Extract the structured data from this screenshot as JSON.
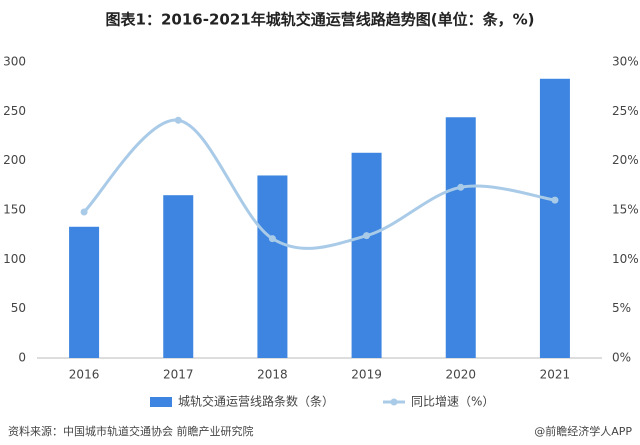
{
  "chart_data": {
    "type": "bar",
    "title": "图表1：2016-2021年城轨交通运营线路趋势图(单位：条，%)",
    "categories": [
      "2016",
      "2017",
      "2018",
      "2019",
      "2020",
      "2021"
    ],
    "series": [
      {
        "name": "城轨交通运营线路条数（条）",
        "color": "#3d85e0",
        "type": "bar",
        "values": [
          133,
          165,
          185,
          208,
          244,
          283
        ]
      },
      {
        "name": "同比增速（%）",
        "color": "#a9cbe8",
        "type": "line",
        "axis": "y2",
        "values": [
          14.8,
          24.1,
          12.1,
          12.4,
          17.3,
          16.0
        ]
      }
    ],
    "ylim": [
      0,
      300
    ],
    "yticks": [
      0,
      50,
      100,
      150,
      200,
      250,
      300
    ],
    "y2lim": [
      0,
      30
    ],
    "y2ticks": [
      {
        "value": 0,
        "label": "0%"
      },
      {
        "value": 5,
        "label": "5%"
      },
      {
        "value": 10,
        "label": "10%"
      },
      {
        "value": 15,
        "label": "15%"
      },
      {
        "value": 20,
        "label": "20%"
      },
      {
        "value": 25,
        "label": "25%"
      },
      {
        "value": 30,
        "label": "30%"
      }
    ],
    "grid": false,
    "legend": "bottom",
    "source": "资料来源：中国城市轨道交通协会 前瞻产业研究院",
    "credit": "@前瞻经济学人APP"
  }
}
